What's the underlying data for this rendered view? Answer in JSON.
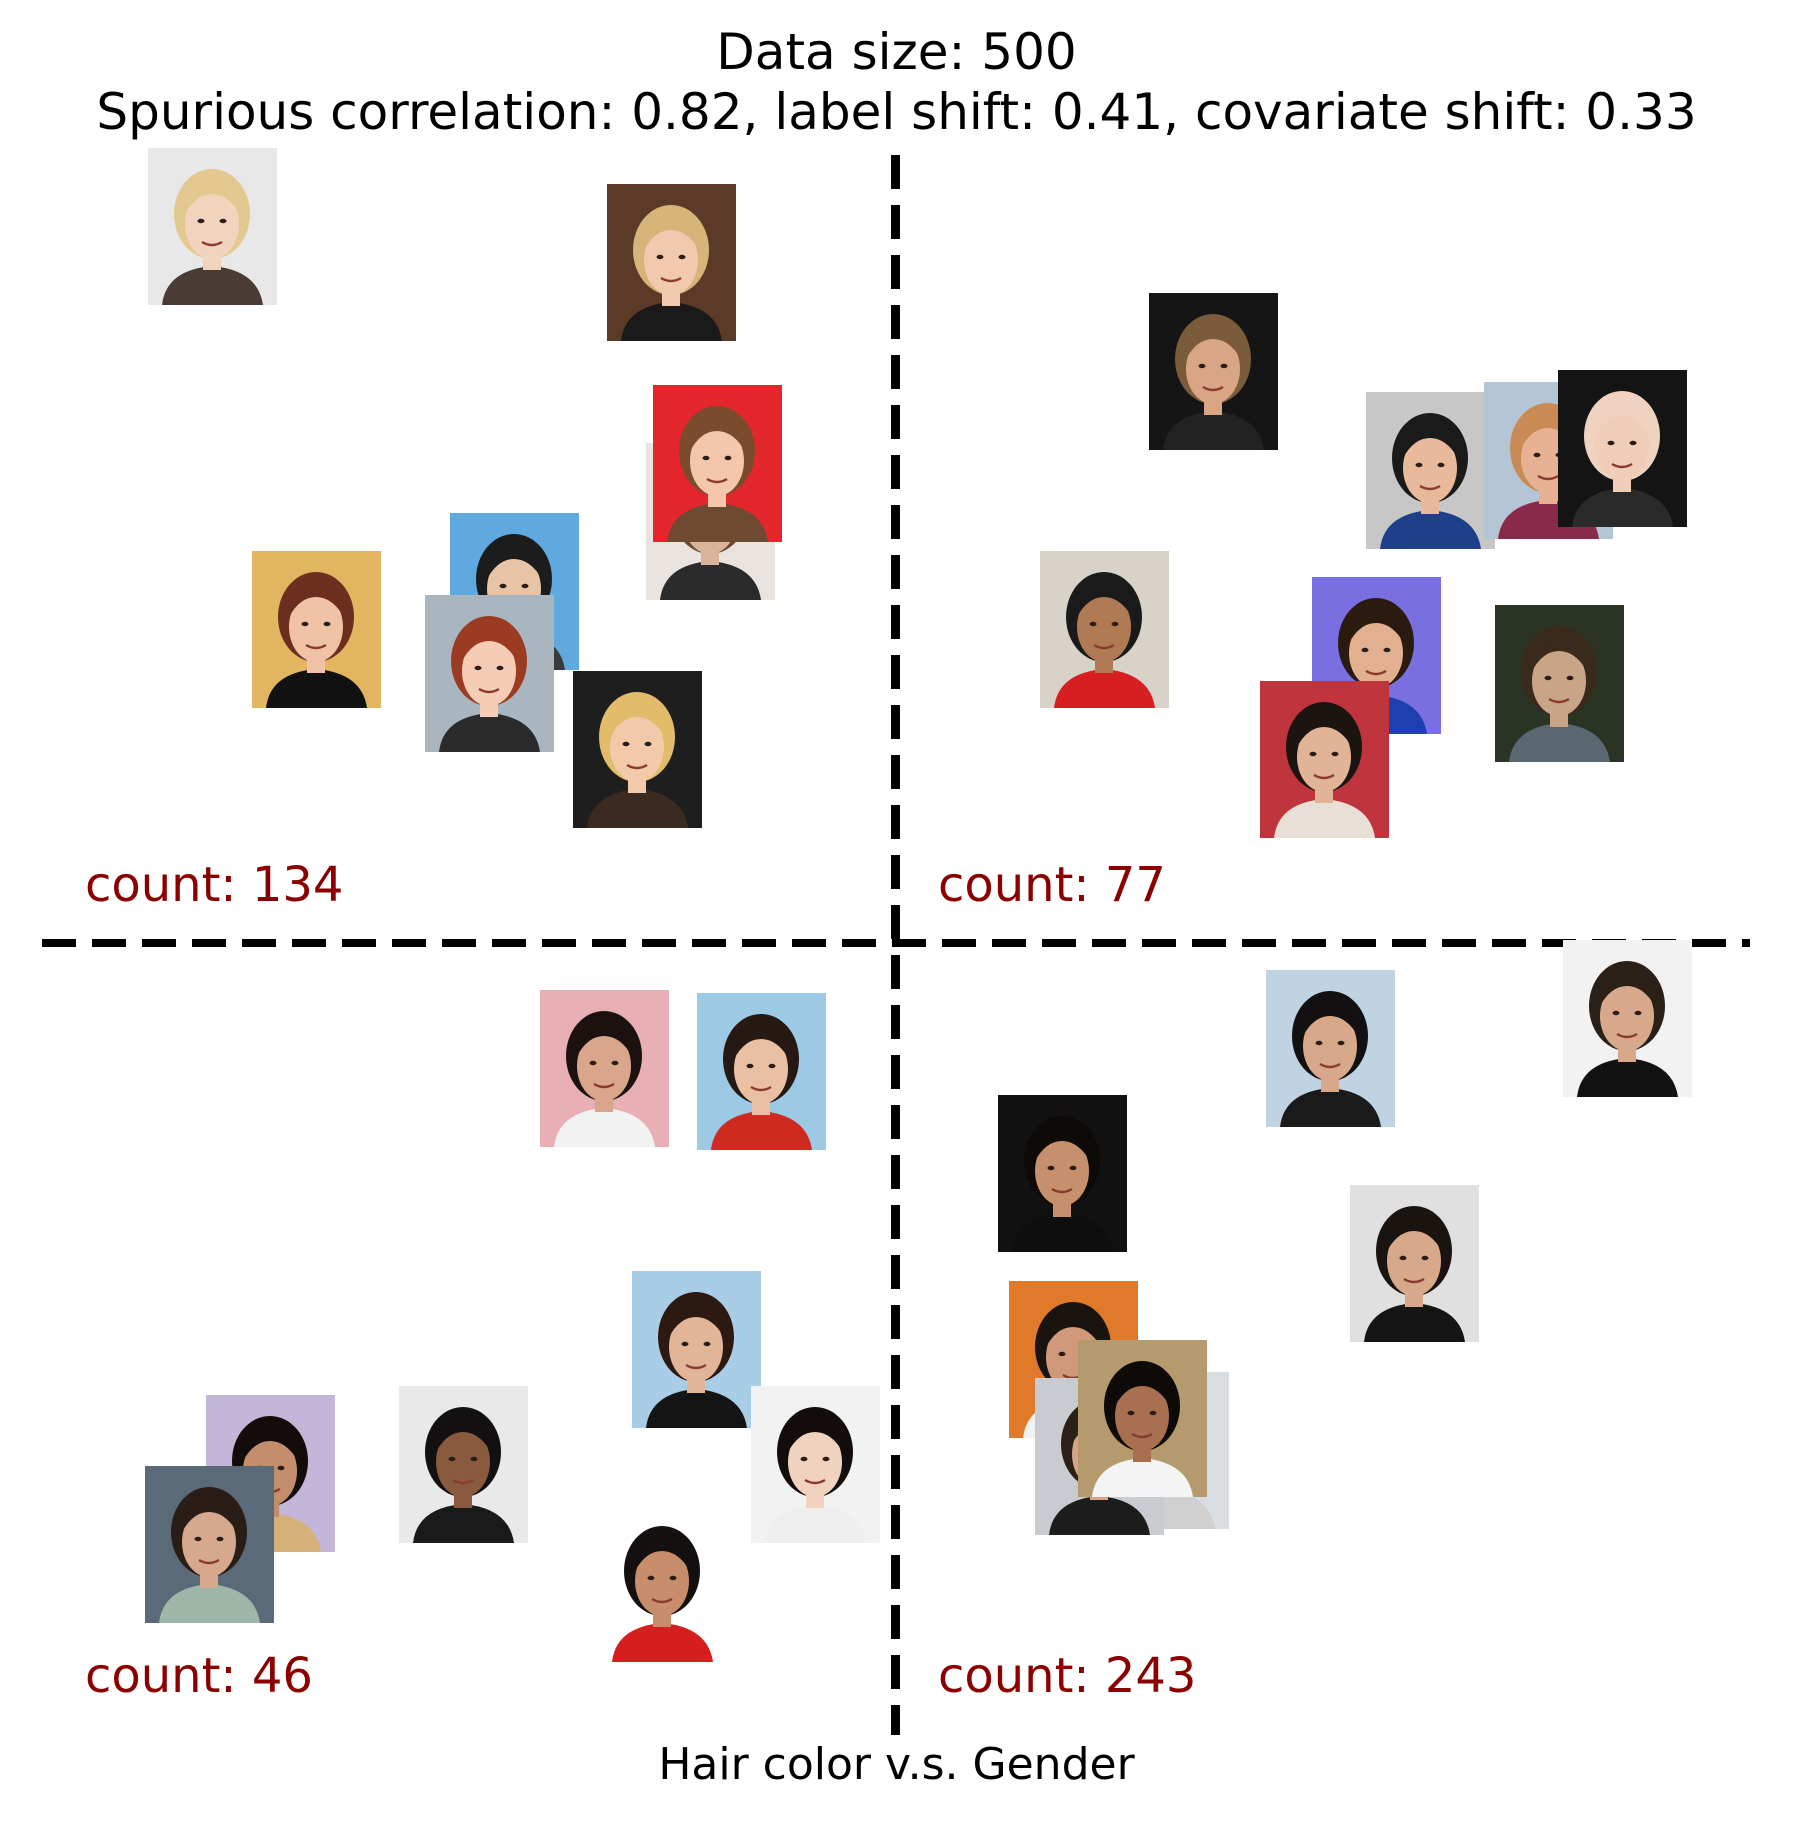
{
  "title": {
    "line1": "Data size: 500",
    "line2": "Spurious correlation: 0.82, label shift: 0.41, covariate shift: 0.33"
  },
  "xlabel": "Hair color v.s. Gender",
  "colors": {
    "count_text": "#8b0000",
    "divider": "#000000",
    "title_text": "#000000"
  },
  "quadrants": [
    {
      "id": "top-left",
      "count_label": "count: 134",
      "count": 134,
      "sample_faces": 8
    },
    {
      "id": "top-right",
      "count_label": "count: 77",
      "count": 77,
      "sample_faces": 9
    },
    {
      "id": "bottom-left",
      "count_label": "count: 46",
      "count": 46,
      "sample_faces": 8
    },
    {
      "id": "bottom-right",
      "count_label": "count: 243",
      "count": 243,
      "sample_faces": 9
    }
  ]
}
